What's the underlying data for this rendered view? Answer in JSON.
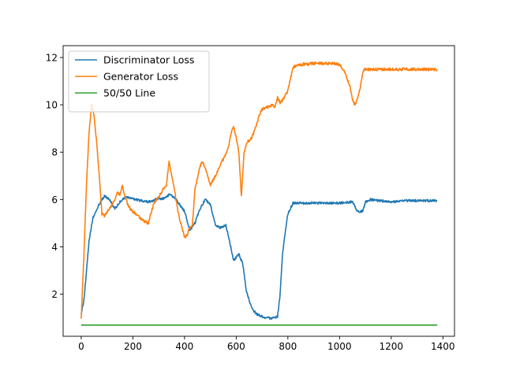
{
  "chart_data": {
    "type": "line",
    "title": "",
    "xlabel": "",
    "ylabel": "",
    "xlim": [
      -70,
      1445
    ],
    "ylim": [
      0.22,
      12.5
    ],
    "xticks": [
      0,
      200,
      400,
      600,
      800,
      1000,
      1200,
      1400
    ],
    "yticks": [
      2,
      4,
      6,
      8,
      10,
      12
    ],
    "grid": false,
    "legend_position": "upper-left",
    "series": [
      {
        "name": "Discriminator Loss",
        "color": "#1f77b4",
        "noise": 0.05,
        "x": [
          0,
          10,
          20,
          30,
          45,
          60,
          75,
          90,
          110,
          130,
          150,
          170,
          190,
          210,
          230,
          260,
          290,
          320,
          340,
          360,
          380,
          400,
          420,
          440,
          460,
          480,
          500,
          520,
          540,
          560,
          575,
          590,
          610,
          625,
          640,
          660,
          680,
          700,
          720,
          740,
          760,
          770,
          780,
          800,
          820,
          850,
          900,
          950,
          1000,
          1050,
          1070,
          1090,
          1100,
          1120,
          1150,
          1200,
          1250,
          1300,
          1350,
          1378
        ],
        "y": [
          1.2,
          1.7,
          2.9,
          4.2,
          5.2,
          5.6,
          5.9,
          6.15,
          6.0,
          5.6,
          5.9,
          6.1,
          6.05,
          6.0,
          5.95,
          5.9,
          6.0,
          6.05,
          6.2,
          6.1,
          5.8,
          5.5,
          4.7,
          5.0,
          5.6,
          6.0,
          5.8,
          4.9,
          4.8,
          4.9,
          4.2,
          3.4,
          3.7,
          3.3,
          2.1,
          1.4,
          1.15,
          1.05,
          1.0,
          0.98,
          1.05,
          2.0,
          3.8,
          5.4,
          5.85,
          5.85,
          5.85,
          5.85,
          5.85,
          5.9,
          5.5,
          5.5,
          5.9,
          6.0,
          5.95,
          5.9,
          5.95,
          5.95,
          5.95,
          5.95
        ]
      },
      {
        "name": "Generator Loss",
        "color": "#ff7f0e",
        "noise": 0.06,
        "x": [
          0,
          10,
          20,
          30,
          40,
          50,
          60,
          70,
          80,
          90,
          100,
          110,
          120,
          130,
          140,
          150,
          160,
          170,
          180,
          190,
          200,
          220,
          240,
          260,
          270,
          280,
          300,
          320,
          330,
          340,
          350,
          360,
          370,
          380,
          400,
          410,
          420,
          430,
          440,
          460,
          470,
          490,
          500,
          510,
          520,
          540,
          560,
          570,
          580,
          590,
          600,
          610,
          620,
          630,
          640,
          660,
          680,
          690,
          700,
          720,
          740,
          750,
          760,
          770,
          780,
          800,
          810,
          820,
          850,
          900,
          950,
          980,
          1000,
          1020,
          1040,
          1050,
          1060,
          1070,
          1080,
          1090,
          1100,
          1150,
          1200,
          1250,
          1300,
          1350,
          1378
        ],
        "y": [
          1.0,
          3.5,
          6.5,
          8.8,
          10.0,
          9.5,
          8.4,
          7.0,
          5.4,
          5.3,
          5.5,
          5.6,
          5.8,
          6.0,
          6.3,
          6.2,
          6.6,
          6.1,
          5.8,
          5.6,
          5.5,
          5.3,
          5.1,
          5.0,
          5.4,
          5.8,
          6.1,
          6.5,
          6.6,
          7.6,
          7.0,
          6.5,
          5.8,
          5.2,
          4.4,
          4.5,
          4.8,
          4.9,
          6.4,
          7.4,
          7.6,
          7.0,
          6.6,
          6.8,
          7.0,
          7.5,
          7.9,
          8.2,
          8.8,
          9.1,
          8.6,
          8.0,
          6.1,
          7.9,
          8.4,
          8.6,
          9.2,
          9.6,
          9.8,
          9.9,
          10.0,
          9.9,
          10.3,
          10.1,
          10.2,
          10.6,
          11.1,
          11.6,
          11.7,
          11.75,
          11.75,
          11.75,
          11.7,
          11.4,
          10.8,
          10.2,
          10.0,
          10.3,
          10.7,
          11.4,
          11.5,
          11.5,
          11.5,
          11.5,
          11.5,
          11.5,
          11.5
        ]
      },
      {
        "name": "50/50 Line",
        "color": "#2ca02c",
        "noise": 0,
        "x": [
          0,
          1378
        ],
        "y": [
          0.693,
          0.693
        ]
      }
    ]
  }
}
